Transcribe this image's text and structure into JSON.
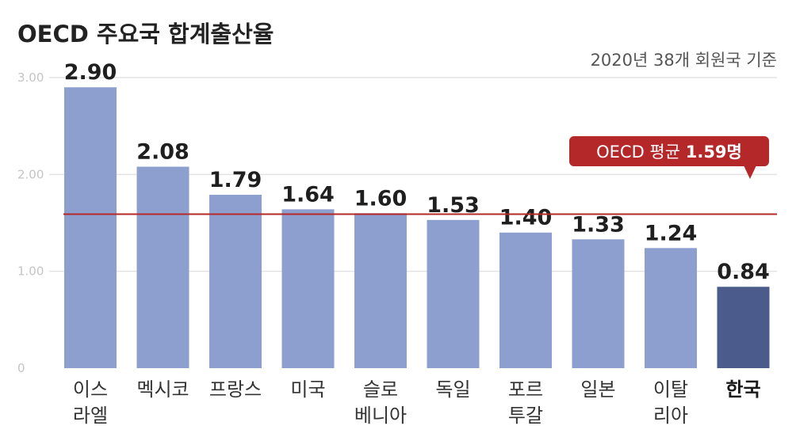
{
  "chart_data": {
    "type": "bar",
    "title": "OECD 주요국 합계출산율",
    "subtitle": "2020년 38개 회원국 기준",
    "categories": [
      [
        "이스",
        "라엘"
      ],
      [
        "멕시코"
      ],
      [
        "프랑스"
      ],
      [
        "미국"
      ],
      [
        "슬로",
        "베니아"
      ],
      [
        "독일"
      ],
      [
        "포르",
        "투갈"
      ],
      [
        "일본"
      ],
      [
        "이탈",
        "리아"
      ],
      [
        "한국"
      ]
    ],
    "values": [
      2.9,
      2.08,
      1.79,
      1.64,
      1.6,
      1.53,
      1.4,
      1.33,
      1.24,
      0.84
    ],
    "value_labels": [
      "2.90",
      "2.08",
      "1.79",
      "1.64",
      "1.60",
      "1.53",
      "1.40",
      "1.33",
      "1.24",
      "0.84"
    ],
    "highlight_index": 9,
    "ylim": [
      0,
      3.0
    ],
    "yticks": [
      0,
      1.0,
      2.0,
      3.0
    ],
    "ytick_labels": [
      "0",
      "1.00",
      "2.00",
      "3.00"
    ],
    "grid": true,
    "reference_line": {
      "value": 1.59,
      "label_prefix": "OECD 평균 ",
      "label_value": "1.59명"
    },
    "colors": {
      "bar": "#8d9fce",
      "highlight_bar": "#4a5b8c",
      "reference": "#b5282a"
    }
  }
}
